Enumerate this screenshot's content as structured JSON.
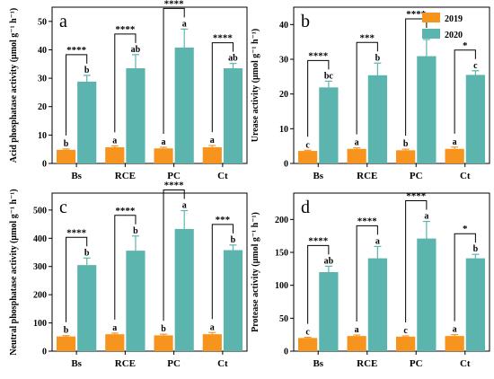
{
  "legend": {
    "entries": [
      {
        "name": "2019",
        "color": "#F7941D"
      },
      {
        "name": "2020",
        "color": "#5BB5AE"
      }
    ]
  },
  "chart_data": [
    {
      "type": "bar",
      "panel": "a",
      "categories": [
        "Bs",
        "RCE",
        "PC",
        "Ct"
      ],
      "ylabel": "Acid phosphatase activity (μmol g⁻¹ h⁻¹)",
      "ylim": [
        0,
        55
      ],
      "yticks": [
        0,
        10,
        20,
        30,
        40,
        50
      ],
      "series": [
        {
          "name": "2019",
          "values": [
            4.8,
            5.7,
            5.3,
            5.7
          ],
          "errors": [
            0.3,
            0.5,
            0.4,
            0.6
          ],
          "letters": [
            "b",
            "a",
            "a",
            "a"
          ]
        },
        {
          "name": "2020",
          "values": [
            28.8,
            33.5,
            40.8,
            33.5
          ],
          "errors": [
            2.2,
            4.8,
            6.5,
            1.7
          ],
          "letters": [
            "b",
            "ab",
            "a",
            "ab"
          ]
        }
      ],
      "significance": [
        "****",
        "****",
        "****",
        "****"
      ]
    },
    {
      "type": "bar",
      "panel": "b",
      "categories": [
        "Bs",
        "RCE",
        "PC",
        "Ct"
      ],
      "ylabel": "Urease activity (μmol g⁻¹ h⁻¹)",
      "ylim": [
        0,
        45
      ],
      "yticks": [
        0,
        10,
        20,
        30,
        40
      ],
      "series": [
        {
          "name": "2019",
          "values": [
            3.6,
            4.2,
            3.8,
            4.2
          ],
          "errors": [
            0.2,
            0.3,
            0.3,
            0.5
          ],
          "letters": [
            "c",
            "a",
            "b",
            "a"
          ]
        },
        {
          "name": "2020",
          "values": [
            21.9,
            25.4,
            30.9,
            25.5
          ],
          "errors": [
            1.8,
            3.5,
            4.8,
            1.2
          ],
          "letters": [
            "bc",
            "b",
            "a",
            "c"
          ]
        }
      ],
      "significance": [
        "****",
        "***",
        "****",
        "*"
      ]
    },
    {
      "type": "bar",
      "panel": "c",
      "categories": [
        "Bs",
        "RCE",
        "PC",
        "Ct"
      ],
      "ylabel": "Neutral phosphatase activity (μmol g⁻¹ h⁻¹)",
      "ylim": [
        0,
        560
      ],
      "yticks": [
        0,
        100,
        200,
        300,
        400,
        500
      ],
      "series": [
        {
          "name": "2019",
          "values": [
            52,
            60,
            56,
            60
          ],
          "errors": [
            3,
            4,
            4,
            6
          ],
          "letters": [
            "b",
            "a",
            "b",
            "a"
          ]
        },
        {
          "name": "2020",
          "values": [
            305,
            356,
            433,
            358
          ],
          "errors": [
            25,
            52,
            65,
            18
          ],
          "letters": [
            "b",
            "b",
            "a",
            "b"
          ]
        }
      ],
      "significance": [
        "****",
        "****",
        "****",
        "***"
      ]
    },
    {
      "type": "bar",
      "panel": "d",
      "categories": [
        "Bs",
        "RCE",
        "PC",
        "Ct"
      ],
      "ylabel": "Protease activity (μmol g⁻¹ h⁻¹)",
      "ylim": [
        0,
        240
      ],
      "yticks": [
        0,
        50,
        100,
        150,
        200
      ],
      "series": [
        {
          "name": "2019",
          "values": [
            20,
            23,
            22,
            23
          ],
          "errors": [
            1,
            1.5,
            1.2,
            2
          ],
          "letters": [
            "c",
            "a",
            "c",
            "a"
          ]
        },
        {
          "name": "2020",
          "values": [
            120,
            141,
            171,
            141
          ],
          "errors": [
            9,
            18,
            26,
            6
          ],
          "letters": [
            "ab",
            "a",
            "a",
            "b"
          ]
        }
      ],
      "significance": [
        "****",
        "****",
        "****",
        "*"
      ]
    }
  ]
}
